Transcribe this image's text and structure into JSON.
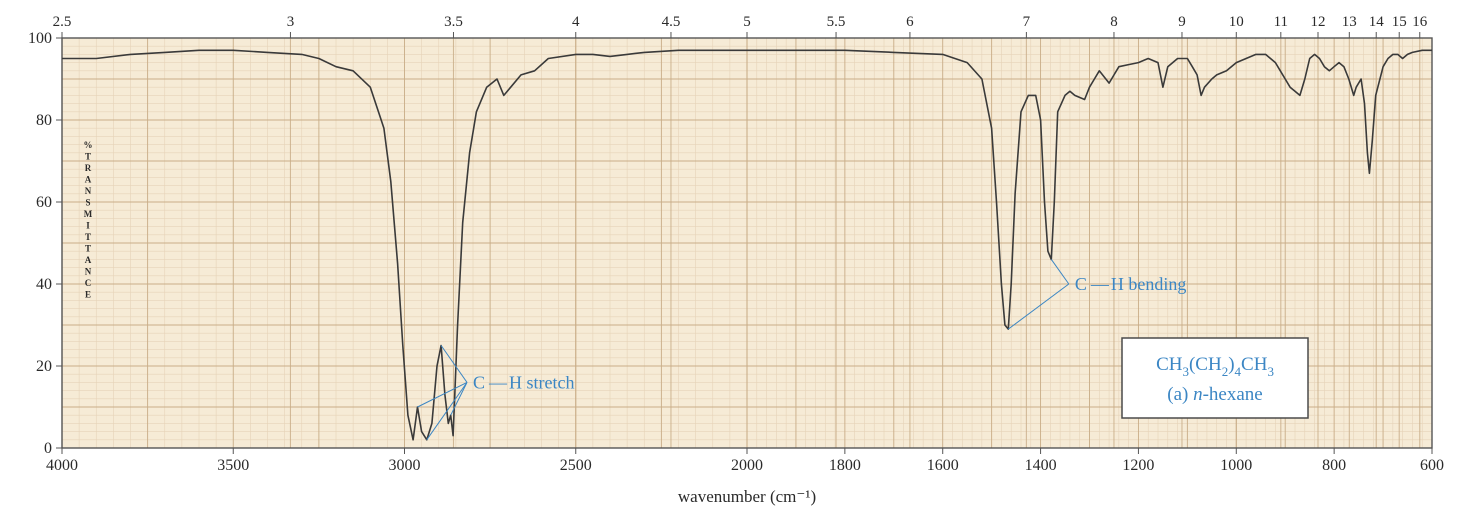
{
  "chart_data": {
    "type": "line",
    "xlabel": "wavenumber (cm⁻¹)",
    "ylabel": "%TRANSMITTANCE",
    "xlim": [
      4000,
      600
    ],
    "ylim": [
      0,
      100
    ],
    "x_scale": "segmented: 4000–2000 and 2000–600 each span half the width",
    "grid": true,
    "bottom_ticks": [
      4000,
      3500,
      3000,
      2500,
      2000,
      1800,
      1600,
      1400,
      1200,
      1000,
      800,
      600
    ],
    "y_ticks": [
      0,
      20,
      40,
      60,
      80,
      100
    ],
    "top_ticks": [
      {
        "label": "2.5",
        "wavenumber": 4000
      },
      {
        "label": "3",
        "wavenumber": 3333
      },
      {
        "label": "3.5",
        "wavenumber": 2857
      },
      {
        "label": "4",
        "wavenumber": 2500
      },
      {
        "label": "4.5",
        "wavenumber": 2222
      },
      {
        "label": "5",
        "wavenumber": 2000
      },
      {
        "label": "5.5",
        "wavenumber": 1818
      },
      {
        "label": "6",
        "wavenumber": 1667
      },
      {
        "label": "7",
        "wavenumber": 1429
      },
      {
        "label": "8",
        "wavenumber": 1250
      },
      {
        "label": "9",
        "wavenumber": 1111
      },
      {
        "label": "10",
        "wavenumber": 1000
      },
      {
        "label": "11",
        "wavenumber": 909
      },
      {
        "label": "12",
        "wavenumber": 833
      },
      {
        "label": "13",
        "wavenumber": 769
      },
      {
        "label": "14",
        "wavenumber": 714
      },
      {
        "label": "15",
        "wavenumber": 667
      },
      {
        "label": "16",
        "wavenumber": 625
      }
    ],
    "series": [
      {
        "points": [
          [
            4000,
            95
          ],
          [
            3900,
            95
          ],
          [
            3800,
            96
          ],
          [
            3700,
            96.5
          ],
          [
            3600,
            97
          ],
          [
            3500,
            97
          ],
          [
            3400,
            96.5
          ],
          [
            3300,
            96
          ],
          [
            3250,
            95
          ],
          [
            3200,
            93
          ],
          [
            3150,
            92
          ],
          [
            3100,
            88
          ],
          [
            3060,
            78
          ],
          [
            3040,
            65
          ],
          [
            3020,
            45
          ],
          [
            3005,
            25
          ],
          [
            2990,
            8
          ],
          [
            2975,
            2
          ],
          [
            2962,
            10
          ],
          [
            2950,
            4
          ],
          [
            2935,
            2
          ],
          [
            2920,
            6
          ],
          [
            2905,
            20
          ],
          [
            2893,
            25
          ],
          [
            2882,
            13
          ],
          [
            2872,
            6
          ],
          [
            2865,
            8
          ],
          [
            2858,
            3
          ],
          [
            2845,
            30
          ],
          [
            2830,
            55
          ],
          [
            2810,
            72
          ],
          [
            2790,
            82
          ],
          [
            2760,
            88
          ],
          [
            2730,
            90
          ],
          [
            2710,
            86
          ],
          [
            2690,
            88
          ],
          [
            2660,
            91
          ],
          [
            2620,
            92
          ],
          [
            2580,
            95
          ],
          [
            2500,
            96
          ],
          [
            2450,
            96
          ],
          [
            2400,
            95.5
          ],
          [
            2350,
            96
          ],
          [
            2300,
            96.5
          ],
          [
            2200,
            97
          ],
          [
            2100,
            97
          ],
          [
            2000,
            97
          ],
          [
            1900,
            97
          ],
          [
            1800,
            97
          ],
          [
            1700,
            96.5
          ],
          [
            1600,
            96
          ],
          [
            1550,
            94
          ],
          [
            1520,
            90
          ],
          [
            1500,
            78
          ],
          [
            1490,
            60
          ],
          [
            1480,
            40
          ],
          [
            1473,
            30
          ],
          [
            1466,
            29
          ],
          [
            1460,
            40
          ],
          [
            1452,
            62
          ],
          [
            1440,
            82
          ],
          [
            1425,
            86
          ],
          [
            1410,
            86
          ],
          [
            1400,
            80
          ],
          [
            1392,
            60
          ],
          [
            1385,
            48
          ],
          [
            1378,
            46
          ],
          [
            1372,
            60
          ],
          [
            1365,
            82
          ],
          [
            1350,
            86
          ],
          [
            1340,
            87
          ],
          [
            1330,
            86
          ],
          [
            1310,
            85
          ],
          [
            1300,
            88
          ],
          [
            1290,
            90
          ],
          [
            1280,
            92
          ],
          [
            1260,
            89
          ],
          [
            1250,
            91
          ],
          [
            1240,
            93
          ],
          [
            1220,
            93.5
          ],
          [
            1200,
            94
          ],
          [
            1180,
            95
          ],
          [
            1160,
            94
          ],
          [
            1150,
            88
          ],
          [
            1140,
            93
          ],
          [
            1120,
            95
          ],
          [
            1100,
            95
          ],
          [
            1090,
            93
          ],
          [
            1080,
            91
          ],
          [
            1072,
            86
          ],
          [
            1065,
            88
          ],
          [
            1050,
            90
          ],
          [
            1040,
            91
          ],
          [
            1020,
            92
          ],
          [
            1000,
            94
          ],
          [
            980,
            95
          ],
          [
            960,
            96
          ],
          [
            940,
            96
          ],
          [
            920,
            94
          ],
          [
            910,
            92
          ],
          [
            900,
            90
          ],
          [
            890,
            88
          ],
          [
            880,
            87
          ],
          [
            870,
            86
          ],
          [
            860,
            90
          ],
          [
            850,
            95
          ],
          [
            840,
            96
          ],
          [
            830,
            95
          ],
          [
            820,
            93
          ],
          [
            810,
            92
          ],
          [
            800,
            93
          ],
          [
            790,
            94
          ],
          [
            780,
            93
          ],
          [
            770,
            90
          ],
          [
            760,
            86
          ],
          [
            755,
            88
          ],
          [
            745,
            90
          ],
          [
            738,
            84
          ],
          [
            732,
            72
          ],
          [
            728,
            67
          ],
          [
            722,
            75
          ],
          [
            715,
            86
          ],
          [
            700,
            93
          ],
          [
            690,
            95
          ],
          [
            680,
            96
          ],
          [
            670,
            96
          ],
          [
            660,
            95
          ],
          [
            650,
            96
          ],
          [
            640,
            96.5
          ],
          [
            620,
            97
          ],
          [
            600,
            97
          ]
        ]
      }
    ],
    "annotations": [
      {
        "text_parts": [
          "C",
          "H stretch"
        ],
        "targets": [
          [
            2962,
            10
          ],
          [
            2935,
            2
          ],
          [
            2893,
            25
          ],
          [
            2865,
            8
          ]
        ],
        "label_at": [
          2800,
          16
        ]
      },
      {
        "text_parts": [
          "C",
          "H bending"
        ],
        "targets": [
          [
            1466,
            29
          ],
          [
            1378,
            46
          ]
        ],
        "label_at": [
          1330,
          40
        ]
      }
    ],
    "compound_box": {
      "formula": [
        {
          "t": "CH",
          "sub": false
        },
        {
          "t": "3",
          "sub": true
        },
        {
          "t": "(CH",
          "sub": false
        },
        {
          "t": "2",
          "sub": true
        },
        {
          "t": ")",
          "sub": false
        },
        {
          "t": "4",
          "sub": true
        },
        {
          "t": "CH",
          "sub": false
        },
        {
          "t": "3",
          "sub": true
        }
      ],
      "name_prefix": "(a) ",
      "name_italic": "n",
      "name_suffix": "-hexane"
    },
    "colors": {
      "paper": "#f6ebd6",
      "grid_major": "#c9ad88",
      "grid_minor": "#e6d3b8",
      "trace": "#3a3a3a",
      "annotation": "#3b86c4",
      "text": "#2a2a2a"
    }
  }
}
